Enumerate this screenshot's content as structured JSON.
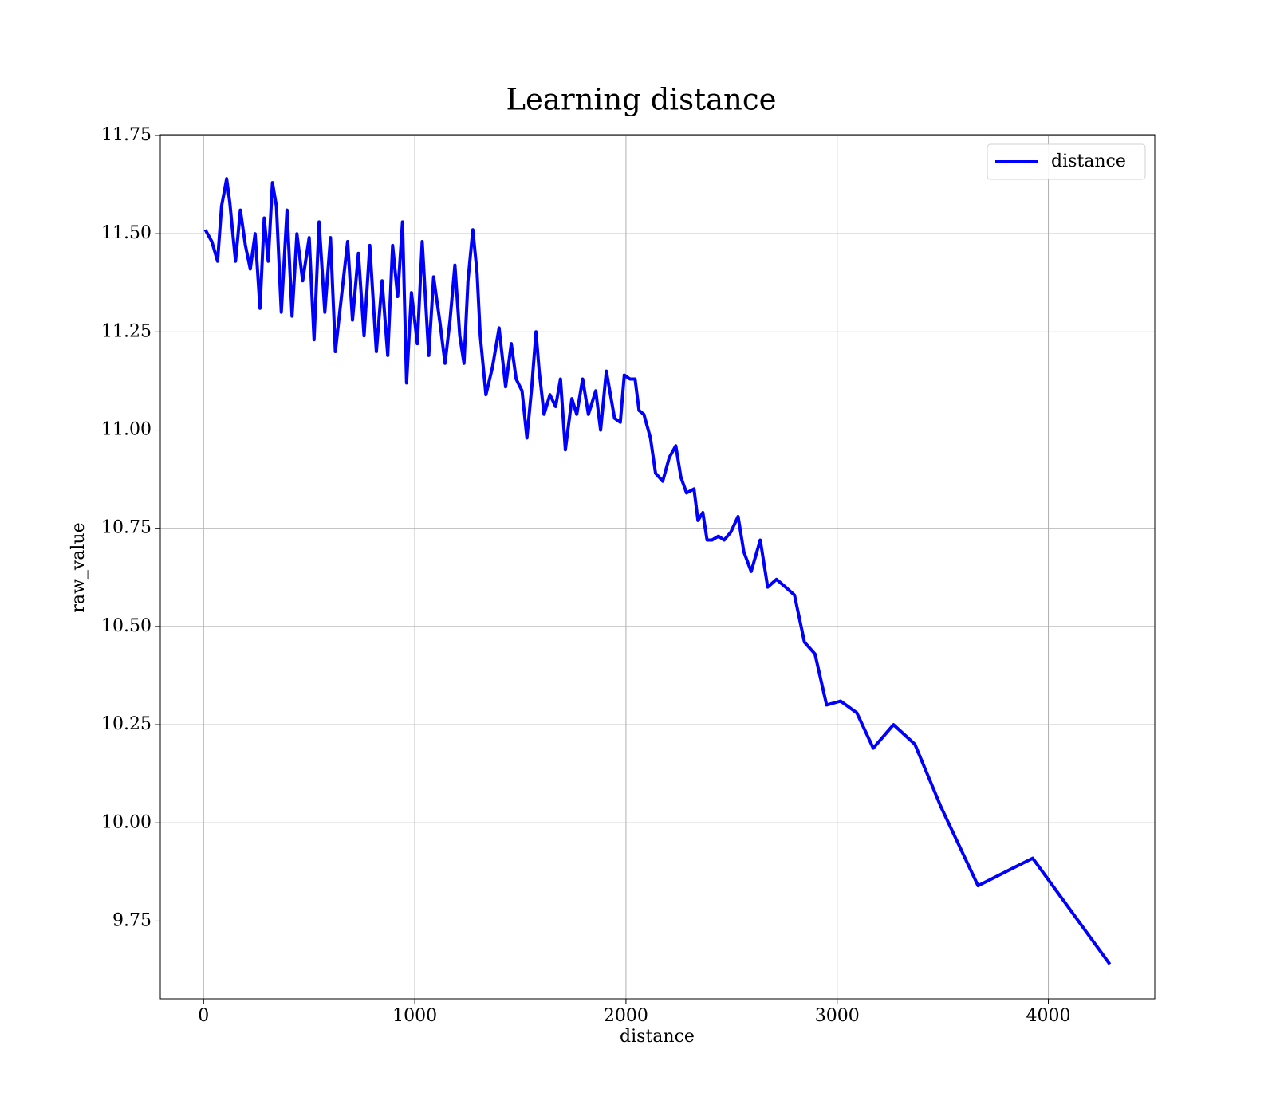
{
  "chart_data": {
    "type": "line",
    "title": "Learning distance",
    "xlabel": "distance",
    "ylabel": "raw_value",
    "x": [
      8,
      39,
      66,
      85,
      109,
      124,
      151,
      174,
      198,
      221,
      244,
      267,
      287,
      306,
      326,
      345,
      368,
      395,
      419,
      442,
      469,
      500,
      523,
      547,
      574,
      601,
      624,
      655,
      682,
      705,
      733,
      760,
      787,
      818,
      845,
      872,
      895,
      919,
      942,
      961,
      984,
      1012,
      1035,
      1066,
      1089,
      1120,
      1143,
      1167,
      1190,
      1213,
      1233,
      1252,
      1275,
      1295,
      1310,
      1337,
      1368,
      1399,
      1430,
      1457,
      1480,
      1508,
      1531,
      1554,
      1574,
      1589,
      1612,
      1640,
      1667,
      1690,
      1713,
      1744,
      1767,
      1795,
      1822,
      1857,
      1880,
      1907,
      1946,
      1973,
      1992,
      2019,
      2043,
      2062,
      2085,
      2116,
      2140,
      2174,
      2205,
      2236,
      2260,
      2287,
      2322,
      2341,
      2364,
      2384,
      2407,
      2438,
      2465,
      2496,
      2531,
      2558,
      2593,
      2636,
      2671,
      2713,
      2756,
      2798,
      2845,
      2895,
      2950,
      3016,
      3093,
      3171,
      3267,
      3368,
      3492,
      3667,
      3926,
      4291
    ],
    "series": [
      {
        "name": "distance",
        "color": "#0000ff",
        "values": [
          11.51,
          11.48,
          11.43,
          11.57,
          11.64,
          11.58,
          11.43,
          11.56,
          11.47,
          11.41,
          11.5,
          11.31,
          11.54,
          11.43,
          11.63,
          11.57,
          11.3,
          11.56,
          11.29,
          11.5,
          11.38,
          11.49,
          11.23,
          11.53,
          11.3,
          11.49,
          11.2,
          11.35,
          11.48,
          11.28,
          11.45,
          11.24,
          11.47,
          11.2,
          11.38,
          11.19,
          11.47,
          11.34,
          11.53,
          11.12,
          11.35,
          11.22,
          11.48,
          11.19,
          11.39,
          11.27,
          11.17,
          11.28,
          11.42,
          11.24,
          11.17,
          11.38,
          11.51,
          11.4,
          11.24,
          11.09,
          11.16,
          11.26,
          11.11,
          11.22,
          11.13,
          11.1,
          10.98,
          11.11,
          11.25,
          11.15,
          11.04,
          11.09,
          11.06,
          11.13,
          10.95,
          11.08,
          11.04,
          11.13,
          11.04,
          11.1,
          11.0,
          11.15,
          11.03,
          11.02,
          11.14,
          11.13,
          11.13,
          11.05,
          11.04,
          10.98,
          10.89,
          10.87,
          10.93,
          10.96,
          10.88,
          10.84,
          10.85,
          10.77,
          10.79,
          10.72,
          10.72,
          10.73,
          10.72,
          10.74,
          10.78,
          10.69,
          10.64,
          10.72,
          10.6,
          10.62,
          10.6,
          10.58,
          10.46,
          10.43,
          10.3,
          10.31,
          10.28,
          10.19,
          10.25,
          10.2,
          10.04,
          9.84,
          9.91,
          9.64
        ]
      }
    ],
    "xlim": [
      -205,
      4504
    ],
    "xticks": [
      0,
      1000,
      2000,
      3000,
      4000
    ],
    "ylim": [
      9.552,
      11.752
    ],
    "yticks": [
      9.75,
      {
        "value": 10.0,
        "label": "10.00"
      },
      10.25,
      {
        "value": 10.5,
        "label": "10.50"
      },
      10.75,
      {
        "value": 11.0,
        "label": "11.00"
      },
      11.25,
      {
        "value": 11.5,
        "label": "11.50"
      },
      11.75
    ],
    "grid": true,
    "legend": "upper right"
  }
}
